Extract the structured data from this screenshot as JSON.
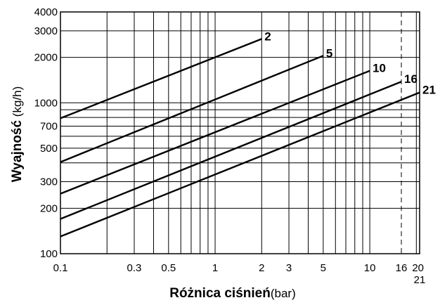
{
  "chart_data": {
    "type": "line",
    "x_scale": "log",
    "y_scale": "log",
    "xlim": [
      0.1,
      21
    ],
    "ylim": [
      100,
      4000
    ],
    "grid": true,
    "x_ticks": [
      {
        "value": 0.1,
        "label": "0.1"
      },
      {
        "value": 0.3,
        "label": "0.3"
      },
      {
        "value": 0.5,
        "label": "0.5"
      },
      {
        "value": 1,
        "label": "1"
      },
      {
        "value": 2,
        "label": "2"
      },
      {
        "value": 3,
        "label": "3"
      },
      {
        "value": 5,
        "label": "5"
      },
      {
        "value": 10,
        "label": "10"
      },
      {
        "value": 16,
        "label": "16"
      },
      {
        "value": 20,
        "label": "20"
      },
      {
        "value": 21,
        "label": "21"
      }
    ],
    "y_ticks": [
      {
        "value": 100,
        "label": "100"
      },
      {
        "value": 200,
        "label": "200"
      },
      {
        "value": 300,
        "label": "300"
      },
      {
        "value": 500,
        "label": "500"
      },
      {
        "value": 700,
        "label": "700"
      },
      {
        "value": 1000,
        "label": "1000"
      },
      {
        "value": 2000,
        "label": "2000"
      },
      {
        "value": 3000,
        "label": "3000"
      },
      {
        "value": 4000,
        "label": "4000"
      }
    ],
    "x_gridlines": [
      0.1,
      0.2,
      0.3,
      0.4,
      0.5,
      0.6,
      0.7,
      0.8,
      0.9,
      1,
      2,
      3,
      4,
      5,
      6,
      7,
      8,
      9,
      10,
      20,
      21
    ],
    "y_gridlines": [
      100,
      200,
      300,
      400,
      500,
      600,
      700,
      800,
      900,
      1000,
      2000,
      3000,
      4000
    ],
    "dashed_x_lines": [
      16
    ],
    "xlabel_bold": "Różnica ciśnień",
    "xlabel_unit": "(bar)",
    "ylabel_bold": "Wyajność",
    "ylabel_unit": "(kg/h)",
    "series": [
      {
        "name": "2",
        "x": [
          0.1,
          2
        ],
        "y": [
          790,
          2650
        ]
      },
      {
        "name": "5",
        "x": [
          0.1,
          5
        ],
        "y": [
          405,
          2050
        ]
      },
      {
        "name": "10",
        "x": [
          0.1,
          10
        ],
        "y": [
          250,
          1630
        ]
      },
      {
        "name": "16",
        "x": [
          0.1,
          16
        ],
        "y": [
          170,
          1380
        ]
      },
      {
        "name": "21",
        "x": [
          0.1,
          21
        ],
        "y": [
          130,
          1170
        ]
      }
    ]
  }
}
